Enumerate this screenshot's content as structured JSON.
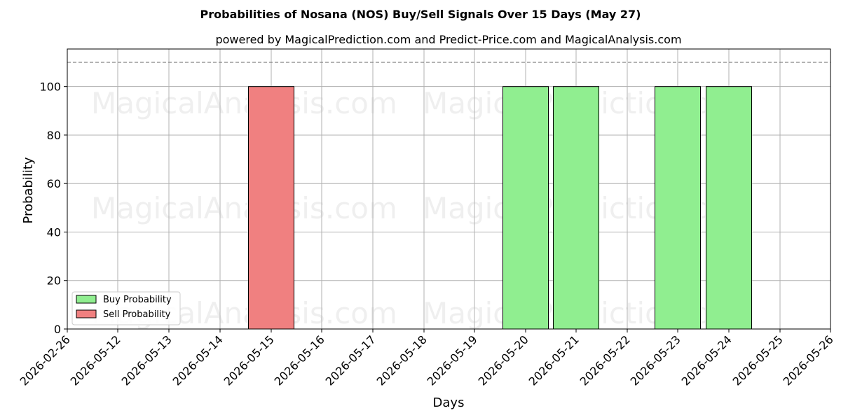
{
  "chart_data": {
    "type": "bar",
    "title": "Probabilities of Nosana (NOS) Buy/Sell Signals Over 15 Days (May 27)",
    "subtitle": "powered by MagicalPrediction.com and Predict-Price.com and MagicalAnalysis.com",
    "xlabel": "Days",
    "ylabel": "Probability",
    "ylim": [
      0,
      115.5
    ],
    "yticks": [
      0,
      20,
      40,
      60,
      80,
      100
    ],
    "x_tick_labels": [
      "2026-02-26",
      "2026-05-12",
      "2026-05-13",
      "2026-05-14",
      "2026-05-15",
      "2026-05-16",
      "2026-05-17",
      "2026-05-18",
      "2026-05-19",
      "2026-05-20",
      "2026-05-21",
      "2026-05-22",
      "2026-05-23",
      "2026-05-24",
      "2026-05-25",
      "2026-05-26"
    ],
    "threshold_line": 110,
    "grid": true,
    "legend_position": "lower-left",
    "series": [
      {
        "name": "Buy Probability",
        "color": "#90ee90",
        "points": [
          {
            "x": "2026-05-20",
            "y": 100
          },
          {
            "x": "2026-05-21",
            "y": 100
          },
          {
            "x": "2026-05-23",
            "y": 100
          },
          {
            "x": "2026-05-24",
            "y": 100
          }
        ]
      },
      {
        "name": "Sell Probability",
        "color": "#f08080",
        "points": [
          {
            "x": "2026-05-15",
            "y": 100
          }
        ]
      }
    ],
    "watermarks": [
      "MagicalAnalysis.com",
      "MagicalPrediction.com",
      "MagicalAnalysis.com",
      "MagicalPrediction.com",
      "MagicalAnalysis.com",
      "MagicalPrediction.com"
    ]
  }
}
